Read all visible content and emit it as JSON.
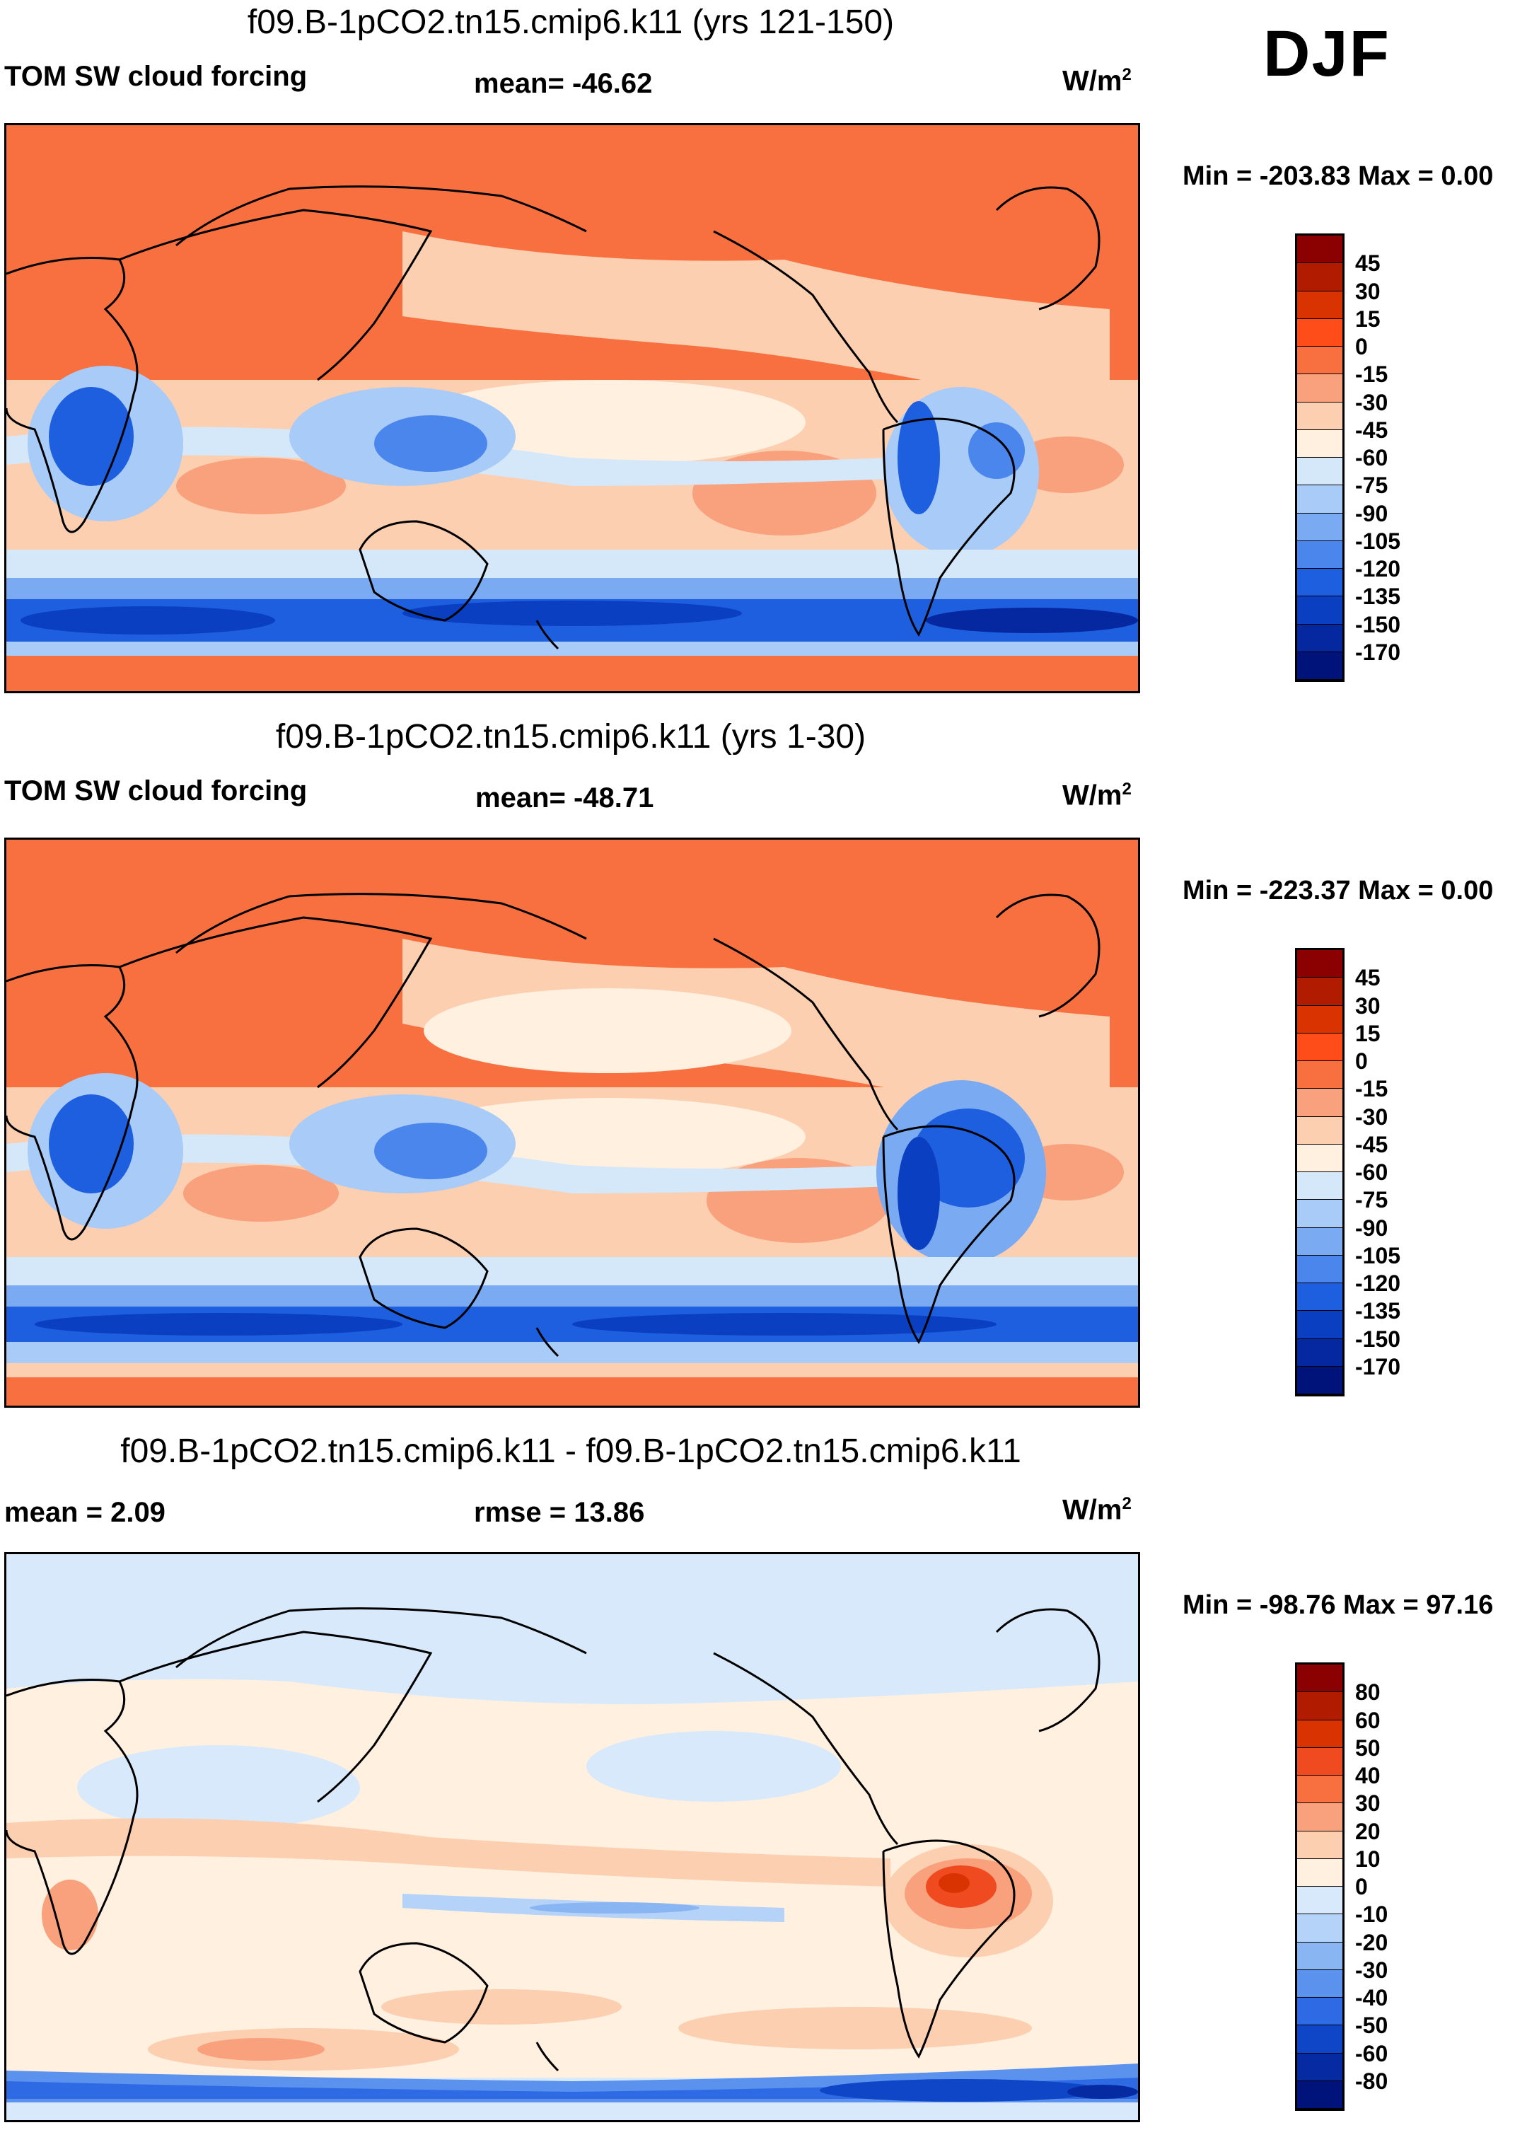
{
  "season": "DJF",
  "panels": [
    {
      "title": "f09.B-1pCO2.tn15.cmip6.k11 (yrs 121-150)",
      "left_label": "TOM SW cloud forcing",
      "stat_label": "mean= -46.62",
      "units": "W/m",
      "units_sup": "2",
      "minmax": "Min = -203.83 Max =   0.00",
      "scale": "abs"
    },
    {
      "title": "f09.B-1pCO2.tn15.cmip6.k11 (yrs 1-30)",
      "left_label": "TOM SW cloud forcing",
      "stat_label": "mean= -48.71",
      "units": "W/m",
      "units_sup": "2",
      "minmax": "Min = -223.37 Max =   0.00",
      "scale": "abs"
    },
    {
      "title": "f09.B-1pCO2.tn15.cmip6.k11 - f09.B-1pCO2.tn15.cmip6.k11",
      "left_label": "mean =   2.09",
      "stat_label": "rmse =  13.86",
      "units": "W/m",
      "units_sup": "2",
      "minmax": "Min = -98.76 Max =  97.16",
      "scale": "diff"
    }
  ],
  "colorbars": {
    "abs": {
      "levels": [
        "45",
        "30",
        "15",
        "0",
        "-15",
        "-30",
        "-45",
        "-60",
        "-75",
        "-90",
        "-105",
        "-120",
        "-135",
        "-150",
        "-170"
      ],
      "colors": [
        "#8b0000",
        "#b11b00",
        "#d83300",
        "#ff4d1a",
        "#f8703f",
        "#f9a07c",
        "#fccfb0",
        "#fff0e0",
        "#d4e8fa",
        "#a8cbf7",
        "#7aabf2",
        "#4a86ec",
        "#1e5fe0",
        "#0a3fc2",
        "#0527a0",
        "#00137a"
      ]
    },
    "diff": {
      "levels": [
        "80",
        "60",
        "50",
        "40",
        "30",
        "20",
        "10",
        "0",
        "-10",
        "-20",
        "-30",
        "-40",
        "-50",
        "-60",
        "-80"
      ],
      "colors": [
        "#8b0000",
        "#b11b00",
        "#d83300",
        "#f04a20",
        "#f8703f",
        "#f9a07c",
        "#fccfb0",
        "#fff0e0",
        "#d8e9fb",
        "#b5d3f8",
        "#8ab5f3",
        "#5a92ee",
        "#2e6ae4",
        "#0f46c8",
        "#052aa2",
        "#00137a"
      ]
    }
  }
}
